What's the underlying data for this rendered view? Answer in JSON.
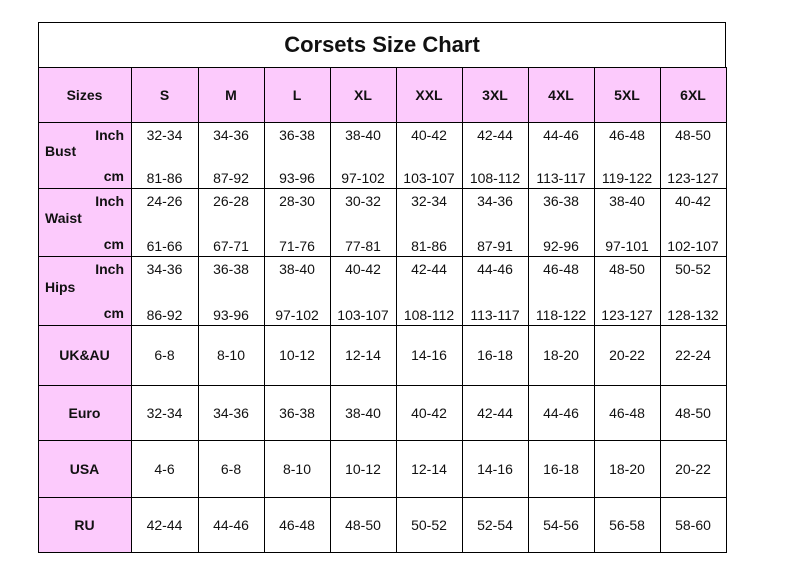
{
  "title": "Corsets Size Chart",
  "header": {
    "label": "Sizes",
    "sizes": [
      "S",
      "M",
      "L",
      "XL",
      "XXL",
      "3XL",
      "4XL",
      "5XL",
      "6XL"
    ]
  },
  "measure_rows": [
    {
      "name": "Bust",
      "inch_label": "Inch",
      "cm_label": "cm",
      "inch": [
        "32-34",
        "34-36",
        "36-38",
        "38-40",
        "40-42",
        "42-44",
        "44-46",
        "46-48",
        "48-50"
      ],
      "cm": [
        "81-86",
        "87-92",
        "93-96",
        "97-102",
        "103-107",
        "108-112",
        "113-117",
        "119-122",
        "123-127"
      ]
    },
    {
      "name": "Waist",
      "inch_label": "Inch",
      "cm_label": "cm",
      "inch": [
        "24-26",
        "26-28",
        "28-30",
        "30-32",
        "32-34",
        "34-36",
        "36-38",
        "38-40",
        "40-42"
      ],
      "cm": [
        "61-66",
        "67-71",
        "71-76",
        "77-81",
        "81-86",
        "87-91",
        "92-96",
        "97-101",
        "102-107"
      ]
    },
    {
      "name": "Hips",
      "inch_label": "Inch",
      "cm_label": "cm",
      "inch": [
        "34-36",
        "36-38",
        "38-40",
        "40-42",
        "42-44",
        "44-46",
        "46-48",
        "48-50",
        "50-52"
      ],
      "cm": [
        "86-92",
        "93-96",
        "97-102",
        "103-107",
        "108-112",
        "113-117",
        "118-122",
        "123-127",
        "128-132"
      ]
    }
  ],
  "rows": [
    {
      "name": "UK&AU",
      "values": [
        "6-8",
        "8-10",
        "10-12",
        "12-14",
        "14-16",
        "16-18",
        "18-20",
        "20-22",
        "22-24"
      ]
    },
    {
      "name": "Euro",
      "values": [
        "32-34",
        "34-36",
        "36-38",
        "38-40",
        "40-42",
        "42-44",
        "44-46",
        "46-48",
        "48-50"
      ]
    },
    {
      "name": "USA",
      "values": [
        "4-6",
        "6-8",
        "8-10",
        "10-12",
        "12-14",
        "14-16",
        "16-18",
        "18-20",
        "20-22"
      ]
    },
    {
      "name": "RU",
      "values": [
        "42-44",
        "44-46",
        "46-48",
        "48-50",
        "50-52",
        "52-54",
        "54-56",
        "56-58",
        "58-60"
      ]
    }
  ]
}
